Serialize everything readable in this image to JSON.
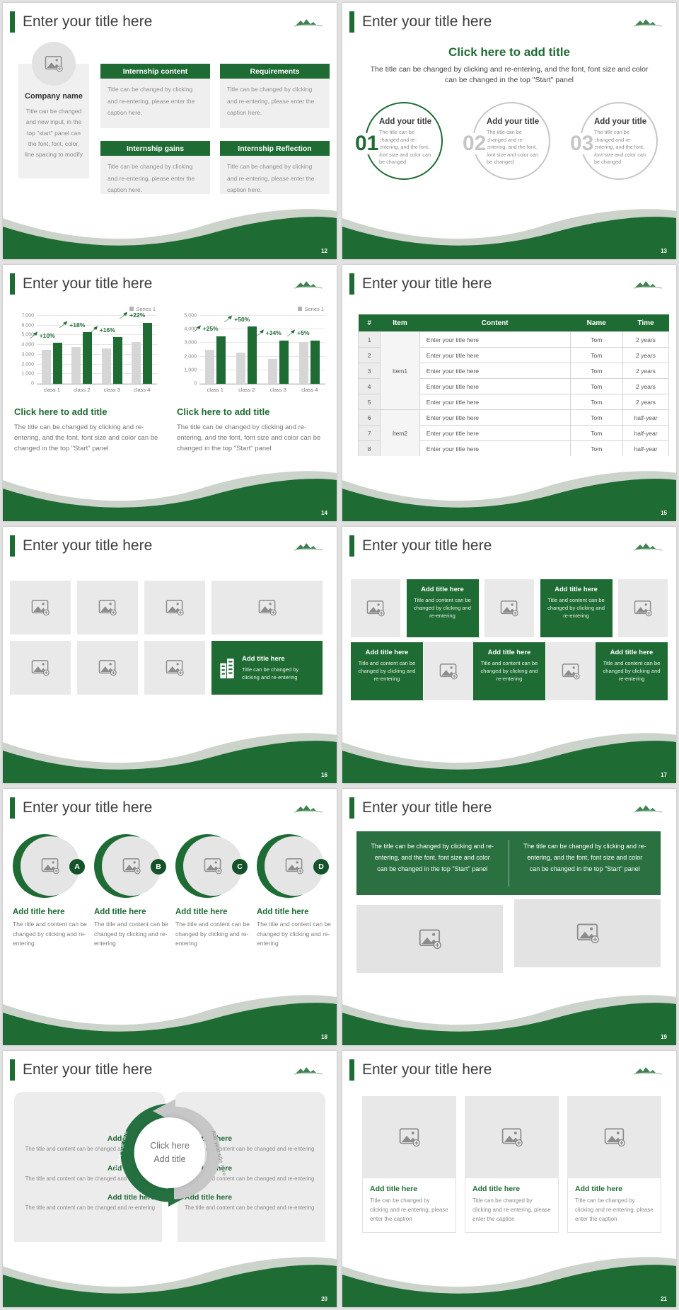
{
  "theme": {
    "green": "#1e6b34",
    "green_dark": "#14532a",
    "sage": "#ccd3ca",
    "cell_gray": "#e9e9e9",
    "text_dark": "#3d3d3d",
    "text_gray": "#8a8a8a"
  },
  "common": {
    "slide_title": "Enter your title here"
  },
  "chart_data": [
    {
      "type": "bar",
      "slide": "14-left",
      "legend": "Series 1",
      "legend_position": "top-right",
      "grid": true,
      "categories": [
        "class 1",
        "class 2",
        "class 3",
        "class 4"
      ],
      "series": [
        {
          "name": "base",
          "color": "#d6d6d6",
          "values": [
            3500,
            3800,
            3650,
            4300
          ]
        },
        {
          "name": "Series 1",
          "color": "#1e6b34",
          "values": [
            4200,
            5300,
            4800,
            6300
          ]
        }
      ],
      "growth_labels": [
        "+10%",
        "+18%",
        "+16%",
        "+22%"
      ],
      "ylim": [
        0,
        7000
      ],
      "ytick_step": 1000,
      "ytick_labels": [
        "0",
        "1,000",
        "2,000",
        "3,000",
        "4,000",
        "5,000",
        "6,000",
        "7,000"
      ]
    },
    {
      "type": "bar",
      "slide": "14-right",
      "legend": "Series 1",
      "legend_position": "top-right",
      "grid": true,
      "categories": [
        "class 1",
        "class 2",
        "class 3",
        "class 4"
      ],
      "series": [
        {
          "name": "base",
          "color": "#d6d6d6",
          "values": [
            2500,
            2300,
            1800,
            3050
          ]
        },
        {
          "name": "Series 1",
          "color": "#1e6b34",
          "values": [
            3500,
            4200,
            3200,
            3200
          ]
        }
      ],
      "growth_labels": [
        "+25%",
        "+50%",
        "+34%",
        "+5%"
      ],
      "ylim": [
        0,
        5000
      ],
      "ytick_step": 1000,
      "ytick_labels": [
        "0",
        "1,000",
        "2,000",
        "3,000",
        "4,000",
        "5,000"
      ]
    }
  ],
  "slides": {
    "s12": {
      "page": "12",
      "company": {
        "name": "Company name",
        "caption": "Title can be changed and new input, in the top \"start\" panel can the font, font, color, line spacing to modify"
      },
      "blocks": [
        {
          "header": "Internship content"
        },
        {
          "header": "Requirements"
        },
        {
          "header": "Internship gains"
        },
        {
          "header": "Internship Reflection"
        }
      ],
      "block_caption": "Title can be changed by clicking and re-entering, please enter the caption here."
    },
    "s13": {
      "page": "13",
      "heading": "Click here to add title",
      "subheading": "The title can be changed by clicking and re-entering, and the font, font size and color can be changed in the top \"Start\" panel",
      "items": [
        {
          "num": "01",
          "title": "Add your title"
        },
        {
          "num": "02",
          "title": "Add your title"
        },
        {
          "num": "03",
          "title": "Add your title"
        }
      ],
      "item_caption": "The title can be changed and re-entering, and the font, font size and color can be changed"
    },
    "s14": {
      "page": "14",
      "caption_heading": "Click here to add title",
      "caption_body": "The title can be changed by clicking and re-entering, and the font, font size and color can be changed in the top \"Start\" panel"
    },
    "s15": {
      "page": "15",
      "headers": [
        "#",
        "Item",
        "Content",
        "Name",
        "Time"
      ],
      "item1_label": "Item1",
      "item2_label": "Item2",
      "rows": [
        {
          "no": "1",
          "content": "Enter your title here",
          "name": "Tom",
          "time": "2 years"
        },
        {
          "no": "2",
          "content": "Enter your title here",
          "name": "Tom",
          "time": "2 years"
        },
        {
          "no": "3",
          "content": "Enter your title here",
          "name": "Tom",
          "time": "2 years"
        },
        {
          "no": "4",
          "content": "Enter your title here",
          "name": "Tom",
          "time": "2 years"
        },
        {
          "no": "5",
          "content": "Enter your title here",
          "name": "Tom",
          "time": "2 years"
        },
        {
          "no": "6",
          "content": "Enter your title here",
          "name": "Tom",
          "time": "half-year"
        },
        {
          "no": "7",
          "content": "Enter your title here",
          "name": "Tom",
          "time": "half-year"
        },
        {
          "no": "8",
          "content": "Enter your title here",
          "name": "Tom",
          "time": "half-year"
        }
      ]
    },
    "s16": {
      "page": "16",
      "green": {
        "title": "Add title here",
        "caption": "Title can be changed by clicking and re-entering"
      }
    },
    "s17": {
      "page": "17",
      "green": {
        "title": "Add title here",
        "caption": "Title and content can be changed by clicking and re-entering"
      }
    },
    "s18": {
      "page": "18",
      "letters": [
        "A",
        "B",
        "C",
        "D"
      ],
      "item_title": "Add title here",
      "item_caption": "The title and content can be changed by clicking and re-entering"
    },
    "s19": {
      "page": "19",
      "box_text": "The title can be changed by clicking and re-entering, and the font, font size and color can be changed in the top \"Start\" panel"
    },
    "s20": {
      "page": "20",
      "item_title": "Add title here",
      "item_caption": "The title and content can be changed and re-entering",
      "center": {
        "line1": "Click here",
        "line2": "Add title"
      },
      "arrow_label": "Add your title here"
    },
    "s21": {
      "page": "21",
      "card_title": "Add title here",
      "card_caption": "Title can be changed by clicking and re-entering, please enter the caption"
    }
  }
}
